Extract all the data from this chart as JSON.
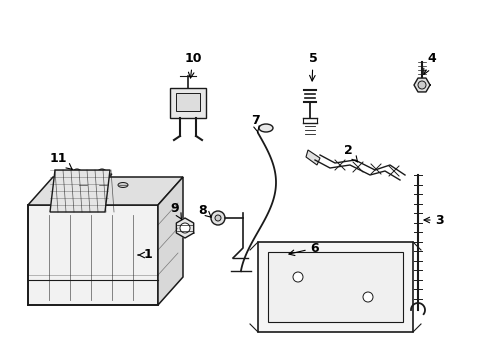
{
  "background_color": "#ffffff",
  "line_color": "#1a1a1a",
  "label_color": "#000000",
  "label_fontsize": 9,
  "fig_width": 4.89,
  "fig_height": 3.6,
  "dpi": 100
}
